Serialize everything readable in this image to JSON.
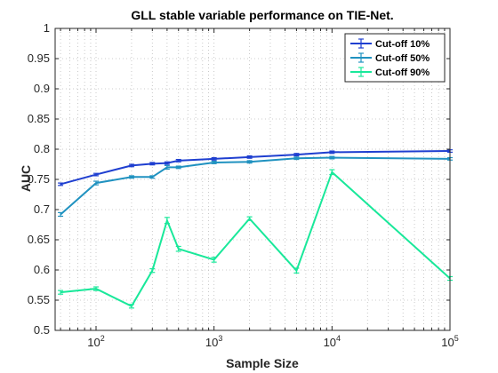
{
  "chart_data": {
    "type": "line",
    "title": "GLL stable variable performance on TIE-Net.",
    "xlabel": "Sample Size",
    "ylabel": "AUC",
    "x_scale": "log",
    "xlim": [
      45,
      100000
    ],
    "ylim": [
      0.5,
      1.0
    ],
    "yticks": [
      0.5,
      0.55,
      0.6,
      0.65,
      0.7,
      0.75,
      0.8,
      0.85,
      0.9,
      0.95,
      1.0
    ],
    "ytick_labels": [
      "0.5",
      "0.55",
      "0.6",
      "0.65",
      "0.7",
      "0.75",
      "0.8",
      "0.85",
      "0.9",
      "0.95",
      "1"
    ],
    "xticks": [
      {
        "value": 100,
        "base": "10",
        "exp": "2"
      },
      {
        "value": 1000,
        "base": "10",
        "exp": "3"
      },
      {
        "value": 10000,
        "base": "10",
        "exp": "4"
      },
      {
        "value": 100000,
        "base": "10",
        "exp": "5"
      }
    ],
    "grid": "dotted",
    "legend_position": "top-right",
    "x": [
      50,
      100,
      200,
      300,
      400,
      500,
      1000,
      2000,
      5000,
      10000,
      100000
    ],
    "series": [
      {
        "name": "Cut-off 10%",
        "color": "#1f3fd0",
        "values": [
          0.742,
          0.758,
          0.773,
          0.776,
          0.777,
          0.781,
          0.784,
          0.787,
          0.791,
          0.795,
          0.797
        ],
        "errors": [
          0.002,
          0.002,
          0.002,
          0.002,
          0.002,
          0.002,
          0.002,
          0.002,
          0.002,
          0.002,
          0.002
        ]
      },
      {
        "name": "Cut-off 50%",
        "color": "#2092c0",
        "values": [
          0.692,
          0.744,
          0.754,
          0.754,
          0.77,
          0.77,
          0.778,
          0.779,
          0.785,
          0.786,
          0.784
        ],
        "errors": [
          0.003,
          0.003,
          0.002,
          0.002,
          0.003,
          0.002,
          0.002,
          0.002,
          0.002,
          0.002,
          0.002
        ]
      },
      {
        "name": "Cut-off 90%",
        "color": "#19e89a",
        "values": [
          0.563,
          0.569,
          0.54,
          0.599,
          0.682,
          0.635,
          0.617,
          0.685,
          0.599,
          0.762,
          0.586
        ],
        "errors": [
          0.003,
          0.003,
          0.003,
          0.003,
          0.005,
          0.004,
          0.004,
          0.003,
          0.004,
          0.004,
          0.003
        ]
      }
    ]
  }
}
